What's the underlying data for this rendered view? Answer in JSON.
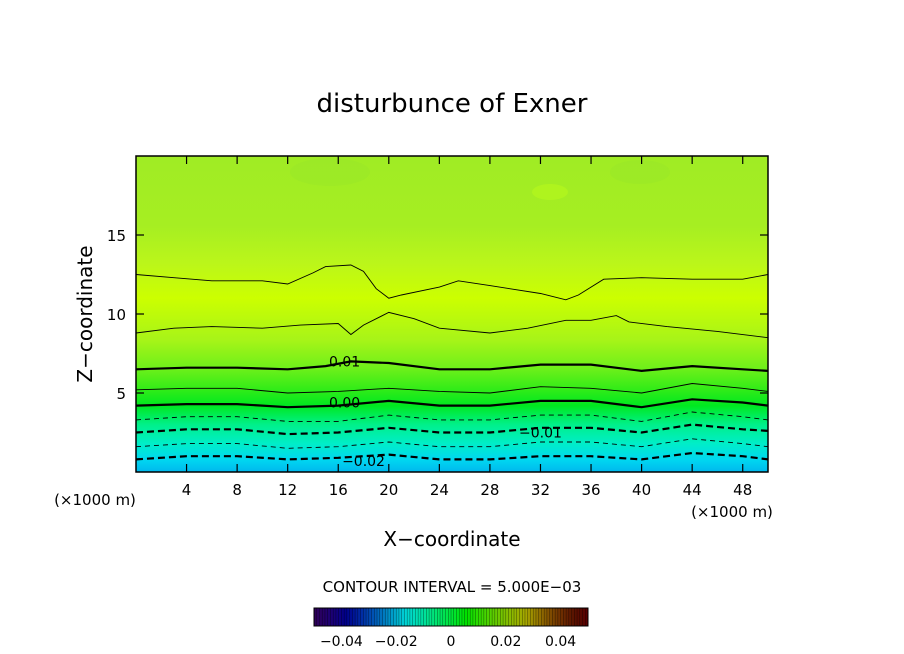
{
  "chart_data": {
    "type": "contour",
    "title": "disturbunce of Exner",
    "xlabel": "X−coordinate",
    "ylabel": "Z−coordinate",
    "x_unit": "(×1000 m)",
    "x_unit_right": "(×1000 m)",
    "xlim": [
      0,
      50
    ],
    "ylim": [
      0,
      20
    ],
    "x_ticks": [
      4,
      8,
      12,
      16,
      20,
      24,
      28,
      32,
      36,
      40,
      44,
      48
    ],
    "y_ticks": [
      5,
      10,
      15
    ],
    "contour_interval_text": "CONTOUR INTERVAL = 5.000E−03",
    "contour_interval": 0.005,
    "contour_labels": [
      {
        "text": "0.01",
        "x": 16.5,
        "z": 7.0
      },
      {
        "text": "0.00",
        "x": 16.5,
        "z": 4.4
      },
      {
        "text": "−0.01",
        "x": 32.0,
        "z": 2.5
      },
      {
        "text": "−0.02",
        "x": 18.0,
        "z": 0.7
      }
    ],
    "contours": [
      {
        "level": 0.02,
        "style": "thin",
        "points": [
          [
            0,
            12.5
          ],
          [
            3,
            12.3
          ],
          [
            6,
            12.1
          ],
          [
            10,
            12.1
          ],
          [
            12,
            11.9
          ],
          [
            14,
            12.6
          ],
          [
            15,
            13.0
          ],
          [
            17,
            13.1
          ],
          [
            18,
            12.7
          ],
          [
            19,
            11.6
          ],
          [
            20,
            11.0
          ],
          [
            21,
            11.2
          ],
          [
            24,
            11.7
          ],
          [
            25.5,
            12.1
          ],
          [
            28,
            11.8
          ],
          [
            32,
            11.3
          ],
          [
            34,
            10.9
          ],
          [
            35,
            11.2
          ],
          [
            37,
            12.2
          ],
          [
            40,
            12.3
          ],
          [
            44,
            12.2
          ],
          [
            48,
            12.2
          ],
          [
            50,
            12.5
          ]
        ]
      },
      {
        "level": 0.015,
        "style": "thin",
        "points": [
          [
            0,
            8.8
          ],
          [
            3,
            9.1
          ],
          [
            6,
            9.2
          ],
          [
            10,
            9.1
          ],
          [
            13,
            9.3
          ],
          [
            16,
            9.4
          ],
          [
            17,
            8.7
          ],
          [
            18,
            9.3
          ],
          [
            20,
            10.1
          ],
          [
            22,
            9.7
          ],
          [
            24,
            9.1
          ],
          [
            28,
            8.8
          ],
          [
            31,
            9.1
          ],
          [
            34,
            9.6
          ],
          [
            36,
            9.6
          ],
          [
            38,
            9.9
          ],
          [
            39,
            9.5
          ],
          [
            42,
            9.2
          ],
          [
            46,
            8.9
          ],
          [
            50,
            8.5
          ]
        ]
      },
      {
        "level": 0.01,
        "style": "thick",
        "points": [
          [
            0,
            6.5
          ],
          [
            4,
            6.6
          ],
          [
            8,
            6.6
          ],
          [
            12,
            6.5
          ],
          [
            15,
            6.7
          ],
          [
            17,
            7.0
          ],
          [
            20,
            6.9
          ],
          [
            24,
            6.5
          ],
          [
            28,
            6.5
          ],
          [
            32,
            6.8
          ],
          [
            36,
            6.8
          ],
          [
            40,
            6.4
          ],
          [
            44,
            6.7
          ],
          [
            48,
            6.5
          ],
          [
            50,
            6.4
          ]
        ]
      },
      {
        "level": 0.005,
        "style": "thin",
        "points": [
          [
            0,
            5.2
          ],
          [
            4,
            5.3
          ],
          [
            8,
            5.3
          ],
          [
            12,
            5.0
          ],
          [
            16,
            5.1
          ],
          [
            20,
            5.3
          ],
          [
            24,
            5.1
          ],
          [
            28,
            5.0
          ],
          [
            32,
            5.4
          ],
          [
            36,
            5.3
          ],
          [
            40,
            5.0
          ],
          [
            44,
            5.6
          ],
          [
            48,
            5.3
          ],
          [
            50,
            5.1
          ]
        ]
      },
      {
        "level": 0.0,
        "style": "thick",
        "points": [
          [
            0,
            4.2
          ],
          [
            4,
            4.3
          ],
          [
            8,
            4.3
          ],
          [
            12,
            4.1
          ],
          [
            16,
            4.2
          ],
          [
            20,
            4.5
          ],
          [
            24,
            4.2
          ],
          [
            28,
            4.2
          ],
          [
            32,
            4.5
          ],
          [
            36,
            4.5
          ],
          [
            40,
            4.1
          ],
          [
            44,
            4.6
          ],
          [
            48,
            4.4
          ],
          [
            50,
            4.2
          ]
        ]
      },
      {
        "level": -0.005,
        "style": "dash-thin",
        "points": [
          [
            0,
            3.3
          ],
          [
            4,
            3.5
          ],
          [
            8,
            3.5
          ],
          [
            12,
            3.2
          ],
          [
            16,
            3.2
          ],
          [
            20,
            3.6
          ],
          [
            24,
            3.3
          ],
          [
            28,
            3.3
          ],
          [
            32,
            3.6
          ],
          [
            36,
            3.6
          ],
          [
            40,
            3.2
          ],
          [
            44,
            3.8
          ],
          [
            48,
            3.5
          ],
          [
            50,
            3.3
          ]
        ]
      },
      {
        "level": -0.01,
        "style": "dash-thick",
        "points": [
          [
            0,
            2.5
          ],
          [
            4,
            2.7
          ],
          [
            8,
            2.7
          ],
          [
            12,
            2.4
          ],
          [
            16,
            2.5
          ],
          [
            20,
            2.8
          ],
          [
            24,
            2.5
          ],
          [
            28,
            2.5
          ],
          [
            32,
            2.8
          ],
          [
            36,
            2.8
          ],
          [
            40,
            2.5
          ],
          [
            44,
            3.0
          ],
          [
            48,
            2.7
          ],
          [
            50,
            2.6
          ]
        ]
      },
      {
        "level": -0.015,
        "style": "dash-thin",
        "points": [
          [
            0,
            1.6
          ],
          [
            4,
            1.8
          ],
          [
            8,
            1.8
          ],
          [
            12,
            1.5
          ],
          [
            16,
            1.6
          ],
          [
            20,
            1.9
          ],
          [
            24,
            1.6
          ],
          [
            28,
            1.6
          ],
          [
            32,
            1.9
          ],
          [
            36,
            1.9
          ],
          [
            40,
            1.6
          ],
          [
            44,
            2.1
          ],
          [
            48,
            1.8
          ],
          [
            50,
            1.6
          ]
        ]
      },
      {
        "level": -0.02,
        "style": "dash-thick",
        "points": [
          [
            0,
            0.8
          ],
          [
            4,
            1.0
          ],
          [
            8,
            1.0
          ],
          [
            12,
            0.8
          ],
          [
            16,
            0.9
          ],
          [
            20,
            1.1
          ],
          [
            24,
            0.8
          ],
          [
            28,
            0.8
          ],
          [
            32,
            1.0
          ],
          [
            36,
            1.0
          ],
          [
            40,
            0.8
          ],
          [
            44,
            1.2
          ],
          [
            48,
            1.0
          ],
          [
            50,
            0.8
          ]
        ]
      }
    ],
    "colorbar": {
      "range": [
        -0.05,
        0.05
      ],
      "tick_labels": [
        "−0.04",
        "−0.02",
        "0",
        "0.02",
        "0.04"
      ],
      "tick_values": [
        -0.04,
        -0.02,
        0,
        0.02,
        0.04
      ]
    }
  }
}
